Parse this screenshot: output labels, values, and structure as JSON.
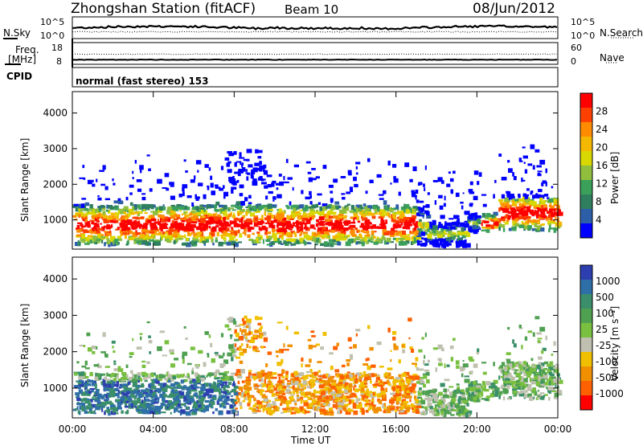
{
  "header": {
    "station": "Zhongshan Station (fitACF)",
    "beam": "Beam 10",
    "date": "08/Jun/2012",
    "cpid_label": "CPID",
    "cpid_text": "normal (fast stereo) 153"
  },
  "top_panels": {
    "nsky_label": "N.Sky",
    "nsky_ticks": [
      "10^5",
      "10^0"
    ],
    "nsearch_label": "N.Search",
    "nsearch_ticks": [
      "10^5",
      "10^0"
    ],
    "freq_label_1": "Freq.",
    "freq_label_2": "[MHz]",
    "freq_ticks": [
      "18",
      "8"
    ],
    "nave_label": "Nave",
    "nave_ticks": [
      "60",
      "0"
    ]
  },
  "power_colorbar": {
    "label": "Power [dB]",
    "ticks": [
      "28",
      "24",
      "20",
      "16",
      "12",
      "8",
      "4"
    ],
    "colors": [
      "#ff0000",
      "#ff4000",
      "#ff8c00",
      "#f5b800",
      "#d8d800",
      "#8fbf3c",
      "#3aa05a",
      "#2f7f5f",
      "#2d5fa8",
      "#0000ff"
    ]
  },
  "velocity_colorbar": {
    "label": "Velocity [m s⁻¹]",
    "ticks": [
      "1000",
      "500",
      "100",
      "25",
      "-25",
      "-100",
      "-500",
      "-1000"
    ],
    "colors": [
      "#2d3fb0",
      "#2f6fa8",
      "#3a8f6a",
      "#4fa050",
      "#79c040",
      "#c0c0b0",
      "#f0c000",
      "#f09000",
      "#ff6000",
      "#ff0000"
    ]
  },
  "chart_data": [
    {
      "type": "heatmap",
      "title": "Power",
      "ylabel": "Slant Range [km]",
      "xlabel": "",
      "yticks": [
        "1000",
        "2000",
        "3000",
        "4000"
      ],
      "xticks": [
        "00:00",
        "04:00",
        "08:00",
        "12:00",
        "16:00",
        "20:00",
        "00:00"
      ],
      "ylim": [
        180,
        4600
      ],
      "xlim": [
        0,
        24
      ],
      "unit": "dB",
      "color_range": [
        0,
        30
      ]
    },
    {
      "type": "heatmap",
      "title": "Velocity",
      "ylabel": "Slant Range [km]",
      "xlabel": "Time UT",
      "yticks": [
        "1000",
        "2000",
        "3000",
        "4000"
      ],
      "xticks": [
        "00:00",
        "04:00",
        "08:00",
        "12:00",
        "16:00",
        "20:00",
        "00:00"
      ],
      "ylim": [
        180,
        4600
      ],
      "xlim": [
        0,
        24
      ],
      "unit": "m s-1",
      "color_range": [
        -1000,
        1000
      ]
    }
  ]
}
